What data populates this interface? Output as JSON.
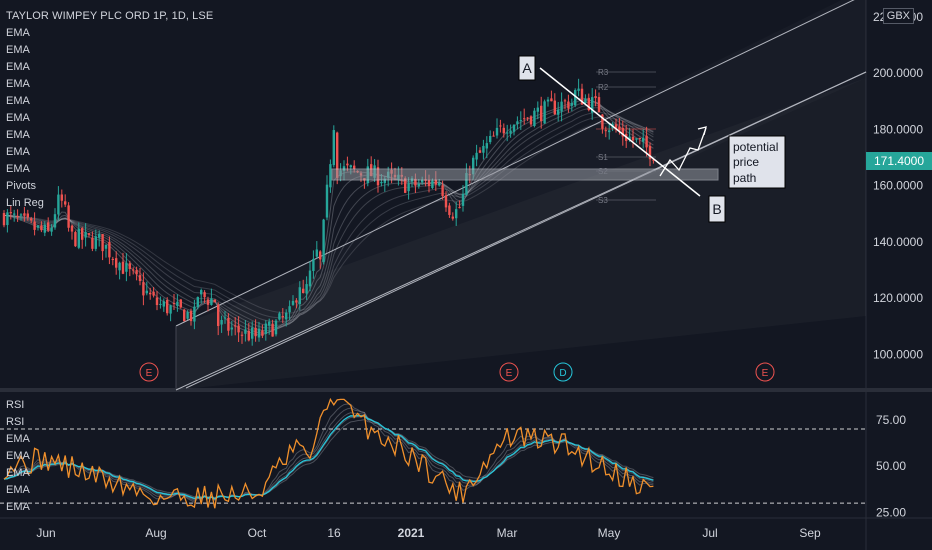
{
  "symbol_title": "TAYLOR WIMPEY PLC ORD 1P, 1D, LSE",
  "currency": "GBX",
  "indicator_labels": [
    "EMA",
    "EMA",
    "EMA",
    "EMA",
    "EMA",
    "EMA",
    "EMA",
    "EMA",
    "EMA",
    "Pivots",
    "Lin Reg"
  ],
  "rsi_labels": [
    "RSI",
    "RSI",
    "EMA",
    "EMA",
    "EMA",
    "EMA",
    "EMA"
  ],
  "annotations": {
    "point_a": "A",
    "point_b": "B",
    "note": [
      "potential",
      "price",
      "path"
    ]
  },
  "earnings_markers": [
    "E",
    "E",
    "D",
    "E"
  ],
  "pivot_labels": [
    "R3",
    "R2",
    "S1",
    "S2",
    "S3"
  ],
  "colors": {
    "background": "#131722",
    "up": "#26a69a",
    "down": "#ef5350",
    "channel": "#b2b5be",
    "rsi": "#f0902c",
    "rsi_ema": "#26c6da",
    "price_tag": "#26a69a"
  },
  "chart_data": [
    {
      "type": "candlestick",
      "title": "TAYLOR WIMPEY PLC ORD 1P, 1D, LSE",
      "x_tick_labels": [
        "Jun",
        "Aug",
        "Oct",
        "16",
        "2021",
        "Mar",
        "May",
        "Jul",
        "Sep"
      ],
      "y_tick_labels": [
        "100.0000",
        "120.0000",
        "140.0000",
        "160.0000",
        "180.0000",
        "200.0000",
        "220.0000"
      ],
      "ylim": [
        88,
        226
      ],
      "last_price": "171.4000",
      "close_path": [
        {
          "month": "May 2020",
          "close": 150
        },
        {
          "month": "Jun 2020",
          "close": 143
        },
        {
          "month": "Jul 2020",
          "close": 140
        },
        {
          "month": "Aug 2020",
          "close": 118
        },
        {
          "month": "Sep 2020",
          "close": 112
        },
        {
          "month": "Oct 2020",
          "close": 106
        },
        {
          "month": "early Nov 2020",
          "close": 114
        },
        {
          "month": "mid Nov 2020",
          "close": 166
        },
        {
          "month": "Dec 2020",
          "close": 164
        },
        {
          "month": "Jan 2021",
          "close": 160
        },
        {
          "month": "Feb 2021",
          "close": 163
        },
        {
          "month": "Mar 2021",
          "close": 182
        },
        {
          "month": "Apr 2021",
          "close": 190
        },
        {
          "month": "May 2021",
          "close": 171.4
        }
      ],
      "support_zone": [
        166,
        169
      ]
    },
    {
      "type": "line",
      "title": "RSI",
      "y_tick_labels": [
        "25.00",
        "50.00",
        "75.00"
      ],
      "ylim": [
        22,
        90
      ],
      "levels": [
        30,
        70
      ],
      "rsi_path": [
        {
          "month": "May 2020",
          "value": 50
        },
        {
          "month": "Jun 2020",
          "value": 54
        },
        {
          "month": "Aug 2020",
          "value": 33
        },
        {
          "month": "Oct 2020",
          "value": 35
        },
        {
          "month": "Nov 2020",
          "value": 83
        },
        {
          "month": "Dec 2020",
          "value": 56
        },
        {
          "month": "Feb 2021",
          "value": 35
        },
        {
          "month": "Mar 2021",
          "value": 66
        },
        {
          "month": "Apr 2021",
          "value": 63
        },
        {
          "month": "May 2021",
          "value": 36
        }
      ]
    }
  ]
}
